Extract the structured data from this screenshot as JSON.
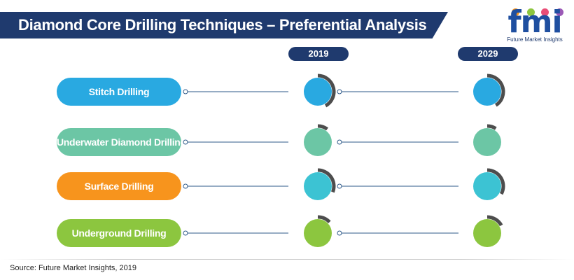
{
  "title": "Diamond Core Drilling Techniques – Preferential Analysis",
  "logo": {
    "text": "fmi",
    "subtitle": "Future Market Insights",
    "dot_colors": [
      "#f7941d",
      "#8dc63f",
      "#e94e77",
      "#9b59b6"
    ]
  },
  "source": "Source: Future Market Insights, 2019",
  "colors": {
    "header_bg": "#1f3a6e",
    "ring": "#4d4d4d",
    "connector": "#2e5a8a"
  },
  "chart_data": {
    "type": "radial-bar",
    "years": [
      "2019",
      "2029"
    ],
    "rows": [
      {
        "label": "Stitch Drilling",
        "color": "#29a9e1",
        "values": [
          0.42,
          0.41
        ]
      },
      {
        "label": "Underwater Diamond Drilling",
        "color": "#6cc6a5",
        "values": [
          0.1,
          0.09
        ]
      },
      {
        "label": "Surface Drilling",
        "color": "#f7941d",
        "circle_color": "#3cc3d3",
        "values": [
          0.31,
          0.33
        ]
      },
      {
        "label": "Underground Drilling",
        "color": "#8cc63f",
        "values": [
          0.13,
          0.17
        ]
      }
    ]
  }
}
